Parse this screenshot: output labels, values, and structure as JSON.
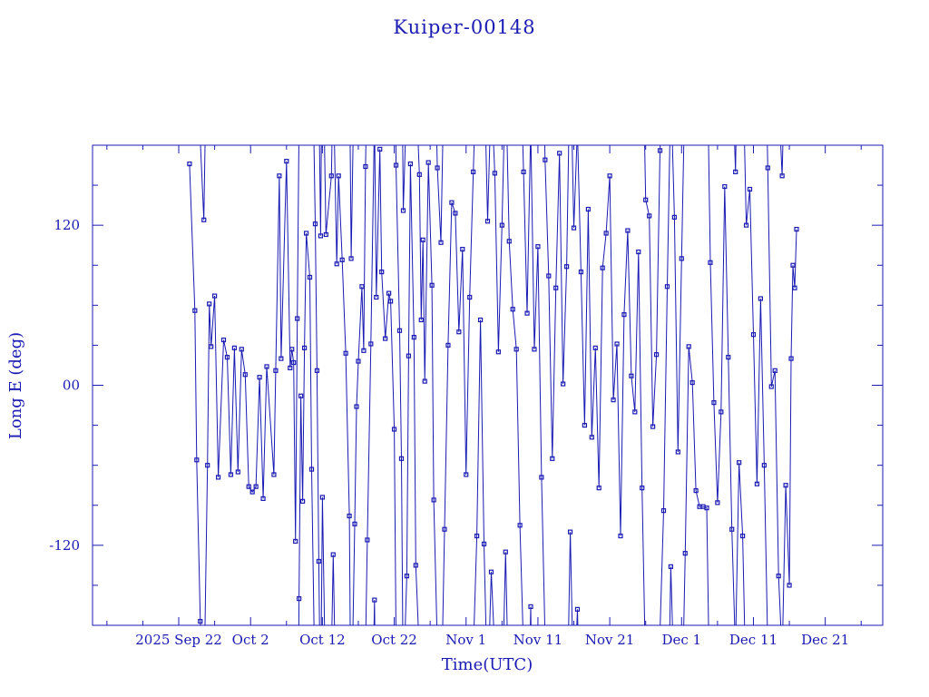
{
  "chart_data": {
    "type": "line",
    "title": "Kuiper-00148",
    "xlabel": "Time(UTC)",
    "ylabel": "Long E (deg)",
    "x_axis": {
      "type": "date",
      "range": [
        "2025-09-10",
        "2025-12-29"
      ],
      "tick_labels": [
        {
          "date": "2025-09-22",
          "label": "2025 Sep 22"
        },
        {
          "date": "2025-10-02",
          "label": "Oct  2"
        },
        {
          "date": "2025-10-12",
          "label": "Oct 12"
        },
        {
          "date": "2025-10-22",
          "label": "Oct 22"
        },
        {
          "date": "2025-11-01",
          "label": "Nov  1"
        },
        {
          "date": "2025-11-11",
          "label": "Nov 11"
        },
        {
          "date": "2025-11-21",
          "label": "Nov 21"
        },
        {
          "date": "2025-12-01",
          "label": "Dec  1"
        },
        {
          "date": "2025-12-11",
          "label": "Dec 11"
        },
        {
          "date": "2025-12-21",
          "label": "Dec 21"
        }
      ]
    },
    "y_axis": {
      "range": [
        -180,
        180
      ],
      "major_ticks": [
        -120,
        0,
        120
      ],
      "tick_labels": [
        "-120",
        "00",
        "120"
      ]
    },
    "grid": false,
    "marker": "square",
    "color": "#1a1ab4",
    "series": [
      {
        "points": [
          [
            "2025-09-23 12:00",
            166
          ],
          [
            "2025-09-24 06:00",
            56
          ],
          [
            "2025-09-24 12:00",
            -56
          ],
          [
            "2025-09-25 00:00",
            -177
          ],
          [
            "2025-09-25 12:00",
            124
          ],
          [
            "2025-09-26 00:00",
            -60
          ],
          [
            "2025-09-26 06:00",
            61
          ],
          [
            "2025-09-26 12:00",
            29
          ],
          [
            "2025-09-27 00:00",
            67
          ],
          [
            "2025-09-27 12:00",
            -69
          ],
          [
            "2025-09-28 06:00",
            34
          ],
          [
            "2025-09-28 18:00",
            21
          ],
          [
            "2025-09-29 06:00",
            -67
          ],
          [
            "2025-09-29 18:00",
            28
          ],
          [
            "2025-09-30 06:00",
            -65
          ],
          [
            "2025-09-30 18:00",
            27
          ],
          [
            "2025-10-01 06:00",
            8
          ],
          [
            "2025-10-01 18:00",
            -76
          ],
          [
            "2025-10-02 06:00",
            -80
          ],
          [
            "2025-10-02 18:00",
            -76
          ],
          [
            "2025-10-03 06:00",
            6
          ],
          [
            "2025-10-03 18:00",
            -85
          ],
          [
            "2025-10-04 06:00",
            14
          ],
          [
            "2025-10-05 06:00",
            -67
          ],
          [
            "2025-10-05 12:00",
            11
          ],
          [
            "2025-10-06 00:00",
            157
          ],
          [
            "2025-10-06 06:00",
            20
          ],
          [
            "2025-10-07 00:00",
            168
          ],
          [
            "2025-10-07 12:00",
            13
          ],
          [
            "2025-10-07 18:00",
            27
          ],
          [
            "2025-10-08 00:00",
            17
          ],
          [
            "2025-10-08 06:00",
            -117
          ],
          [
            "2025-10-08 12:00",
            50
          ],
          [
            "2025-10-08 18:00",
            -160
          ],
          [
            "2025-10-09 00:00",
            -8
          ],
          [
            "2025-10-09 06:00",
            -87
          ],
          [
            "2025-10-09 12:00",
            28
          ],
          [
            "2025-10-09 18:00",
            114
          ],
          [
            "2025-10-10 06:00",
            81
          ],
          [
            "2025-10-10 12:00",
            -63
          ],
          [
            "2025-10-11 00:00",
            121
          ],
          [
            "2025-10-11 06:00",
            11
          ],
          [
            "2025-10-11 12:00",
            -132
          ],
          [
            "2025-10-11 18:00",
            112
          ],
          [
            "2025-10-12 00:00",
            -84
          ],
          [
            "2025-10-12 12:00",
            113
          ],
          [
            "2025-10-13 06:00",
            157
          ],
          [
            "2025-10-13 12:00",
            -127
          ],
          [
            "2025-10-14 00:00",
            91
          ],
          [
            "2025-10-14 06:00",
            157
          ],
          [
            "2025-10-14 18:00",
            94
          ],
          [
            "2025-10-15 06:00",
            24
          ],
          [
            "2025-10-15 18:00",
            -98
          ],
          [
            "2025-10-16 00:00",
            95
          ],
          [
            "2025-10-16 12:00",
            -104
          ],
          [
            "2025-10-16 18:00",
            -16
          ],
          [
            "2025-10-17 00:00",
            18
          ],
          [
            "2025-10-17 12:00",
            74
          ],
          [
            "2025-10-17 18:00",
            26
          ],
          [
            "2025-10-18 00:00",
            164
          ],
          [
            "2025-10-18 06:00",
            -116
          ],
          [
            "2025-10-18 18:00",
            31
          ],
          [
            "2025-10-19 06:00",
            -161
          ],
          [
            "2025-10-19 12:00",
            66
          ],
          [
            "2025-10-20 00:00",
            177
          ],
          [
            "2025-10-20 06:00",
            85
          ],
          [
            "2025-10-20 18:00",
            35
          ],
          [
            "2025-10-21 06:00",
            69
          ],
          [
            "2025-10-21 12:00",
            63
          ],
          [
            "2025-10-22 00:00",
            -33
          ],
          [
            "2025-10-22 06:00",
            165
          ],
          [
            "2025-10-22 18:00",
            41
          ],
          [
            "2025-10-23 00:00",
            -55
          ],
          [
            "2025-10-23 06:00",
            131
          ],
          [
            "2025-10-23 18:00",
            -143
          ],
          [
            "2025-10-24 00:00",
            22
          ],
          [
            "2025-10-24 06:00",
            166
          ],
          [
            "2025-10-24 18:00",
            36
          ],
          [
            "2025-10-25 00:00",
            -135
          ],
          [
            "2025-10-25 12:00",
            158
          ],
          [
            "2025-10-25 18:00",
            49
          ],
          [
            "2025-10-26 00:00",
            109
          ],
          [
            "2025-10-26 06:00",
            3
          ],
          [
            "2025-10-26 18:00",
            167
          ],
          [
            "2025-10-27 06:00",
            75
          ],
          [
            "2025-10-27 12:00",
            -86
          ],
          [
            "2025-10-28 00:00",
            163
          ],
          [
            "2025-10-28 12:00",
            107
          ],
          [
            "2025-10-29 00:00",
            -108
          ],
          [
            "2025-10-29 12:00",
            30
          ],
          [
            "2025-10-30 00:00",
            137
          ],
          [
            "2025-10-30 12:00",
            129
          ],
          [
            "2025-10-31 00:00",
            40
          ],
          [
            "2025-10-31 12:00",
            102
          ],
          [
            "2025-11-01 00:00",
            -67
          ],
          [
            "2025-11-01 12:00",
            66
          ],
          [
            "2025-11-02 00:00",
            160
          ],
          [
            "2025-11-02 12:00",
            -113
          ],
          [
            "2025-11-03 00:00",
            49
          ],
          [
            "2025-11-03 12:00",
            -119
          ],
          [
            "2025-11-04 00:00",
            123
          ],
          [
            "2025-11-04 12:00",
            -140
          ],
          [
            "2025-11-05 00:00",
            159
          ],
          [
            "2025-11-05 12:00",
            25
          ],
          [
            "2025-11-06 00:00",
            120
          ],
          [
            "2025-11-06 12:00",
            -125
          ],
          [
            "2025-11-07 00:00",
            108
          ],
          [
            "2025-11-07 12:00",
            57
          ],
          [
            "2025-11-08 00:00",
            27
          ],
          [
            "2025-11-08 12:00",
            -105
          ],
          [
            "2025-11-09 00:00",
            160
          ],
          [
            "2025-11-09 12:00",
            54
          ],
          [
            "2025-11-10 00:00",
            -166
          ],
          [
            "2025-11-10 12:00",
            27
          ],
          [
            "2025-11-11 00:00",
            104
          ],
          [
            "2025-11-11 12:00",
            -69
          ],
          [
            "2025-11-12 00:00",
            169
          ],
          [
            "2025-11-12 12:00",
            82
          ],
          [
            "2025-11-13 00:00",
            -55
          ],
          [
            "2025-11-13 12:00",
            73
          ],
          [
            "2025-11-14 00:00",
            174
          ],
          [
            "2025-11-14 12:00",
            1
          ],
          [
            "2025-11-15 00:00",
            89
          ],
          [
            "2025-11-15 12:00",
            -110
          ],
          [
            "2025-11-16 00:00",
            118
          ],
          [
            "2025-11-16 12:00",
            -168
          ],
          [
            "2025-11-17 00:00",
            85
          ],
          [
            "2025-11-17 12:00",
            -30
          ],
          [
            "2025-11-18 00:00",
            132
          ],
          [
            "2025-11-18 12:00",
            -39
          ],
          [
            "2025-11-19 00:00",
            28
          ],
          [
            "2025-11-19 12:00",
            -77
          ],
          [
            "2025-11-20 00:00",
            88
          ],
          [
            "2025-11-20 12:00",
            114
          ],
          [
            "2025-11-21 00:00",
            157
          ],
          [
            "2025-11-21 12:00",
            -11
          ],
          [
            "2025-11-22 00:00",
            31
          ],
          [
            "2025-11-22 12:00",
            -113
          ],
          [
            "2025-11-23 00:00",
            53
          ],
          [
            "2025-11-23 12:00",
            116
          ],
          [
            "2025-11-24 00:00",
            7
          ],
          [
            "2025-11-24 12:00",
            -20
          ],
          [
            "2025-11-25 00:00",
            100
          ],
          [
            "2025-11-25 12:00",
            -77
          ],
          [
            "2025-11-26 00:00",
            139
          ],
          [
            "2025-11-26 12:00",
            127
          ],
          [
            "2025-11-27 00:00",
            -31
          ],
          [
            "2025-11-27 12:00",
            23
          ],
          [
            "2025-11-28 00:00",
            176
          ],
          [
            "2025-11-28 12:00",
            -94
          ],
          [
            "2025-11-29 00:00",
            74
          ],
          [
            "2025-11-29 12:00",
            -136
          ],
          [
            "2025-11-30 00:00",
            126
          ],
          [
            "2025-11-30 12:00",
            -50
          ],
          [
            "2025-12-01 00:00",
            95
          ],
          [
            "2025-12-01 12:00",
            -126
          ],
          [
            "2025-12-02 00:00",
            29
          ],
          [
            "2025-12-02 12:00",
            2
          ],
          [
            "2025-12-03 00:00",
            -79
          ],
          [
            "2025-12-03 12:00",
            -91
          ],
          [
            "2025-12-04 00:00",
            -91
          ],
          [
            "2025-12-04 12:00",
            -92
          ],
          [
            "2025-12-05 00:00",
            92
          ],
          [
            "2025-12-05 12:00",
            -13
          ],
          [
            "2025-12-06 00:00",
            -88
          ],
          [
            "2025-12-06 12:00",
            -20
          ],
          [
            "2025-12-07 00:00",
            149
          ],
          [
            "2025-12-07 12:00",
            21
          ],
          [
            "2025-12-08 00:00",
            -108
          ],
          [
            "2025-12-08 12:00",
            160
          ],
          [
            "2025-12-09 00:00",
            -58
          ],
          [
            "2025-12-09 12:00",
            -113
          ],
          [
            "2025-12-10 00:00",
            120
          ],
          [
            "2025-12-10 12:00",
            147
          ],
          [
            "2025-12-11 00:00",
            38
          ],
          [
            "2025-12-11 12:00",
            -74
          ],
          [
            "2025-12-12 00:00",
            65
          ],
          [
            "2025-12-12 12:00",
            -60
          ],
          [
            "2025-12-13 00:00",
            163
          ],
          [
            "2025-12-13 12:00",
            -1
          ],
          [
            "2025-12-14 00:00",
            11
          ],
          [
            "2025-12-14 12:00",
            -143
          ],
          [
            "2025-12-15 00:00",
            157
          ],
          [
            "2025-12-15 12:00",
            -75
          ],
          [
            "2025-12-16 00:00",
            -150
          ],
          [
            "2025-12-16 06:00",
            20
          ],
          [
            "2025-12-16 12:00",
            90
          ],
          [
            "2025-12-16 18:00",
            73
          ],
          [
            "2025-12-17 00:00",
            117
          ]
        ]
      }
    ]
  }
}
